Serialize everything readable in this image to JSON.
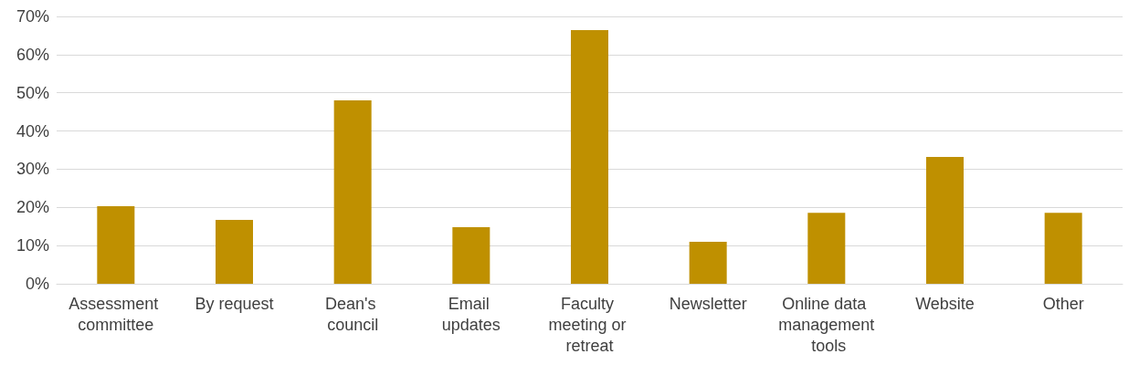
{
  "chart_data": {
    "type": "bar",
    "categories": [
      "Assessment committee",
      "By request",
      "Dean's council",
      "Email updates",
      "Faculty meeting or retreat",
      "Newsletter",
      "Online data management tools",
      "Website",
      "Other"
    ],
    "values": [
      20.3,
      16.7,
      48,
      14.8,
      66.4,
      11,
      18.6,
      33.2,
      18.6
    ],
    "color": "#bf9000",
    "ylim": [
      0,
      70
    ],
    "yticks": [
      {
        "value": 0,
        "label": "0%"
      },
      {
        "value": 10,
        "label": "10%"
      },
      {
        "value": 20,
        "label": "20%"
      },
      {
        "value": 30,
        "label": "30%"
      },
      {
        "value": 40,
        "label": "40%"
      },
      {
        "value": 50,
        "label": "50%"
      },
      {
        "value": 60,
        "label": "60%"
      },
      {
        "value": 70,
        "label": "70%"
      }
    ],
    "grid": "y"
  }
}
